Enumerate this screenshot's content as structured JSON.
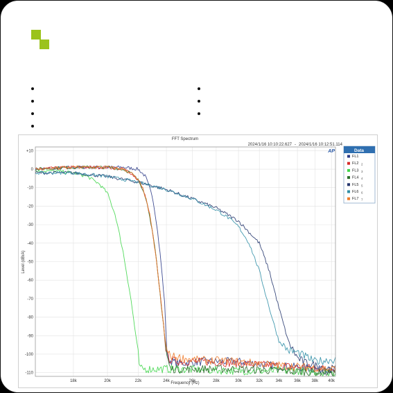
{
  "chart_data": {
    "type": "line",
    "title": "FFT Spectrum",
    "timestamp_left": "2024/1/16 10:10:22.627",
    "timestamp_sep": "-",
    "timestamp_right": "2024/1/16 10:12:51.114",
    "brand": "AP",
    "xlabel": "Frequency (Hz)",
    "ylabel": "Level (dBrA)",
    "xscale": "log",
    "xlim": [
      16000,
      40500
    ],
    "ylim": [
      -112,
      12
    ],
    "x_ticks": [
      18000,
      20000,
      22000,
      24000,
      26000,
      28000,
      30000,
      32000,
      34000,
      36000,
      38000,
      40000
    ],
    "x_tick_labels": [
      "18k",
      "20k",
      "22k",
      "24k",
      "26k",
      "28k",
      "30k",
      "32k",
      "34k",
      "36k",
      "38k",
      "40k"
    ],
    "y_ticks": [
      10,
      0,
      -10,
      -20,
      -30,
      -40,
      -50,
      -60,
      -70,
      -80,
      -90,
      -100,
      -110
    ],
    "y_tick_labels": [
      "+10",
      "0",
      "-10",
      "-20",
      "-30",
      "-40",
      "-50",
      "-60",
      "-70",
      "-80",
      "-90",
      "-100",
      "-110"
    ],
    "grid": true,
    "legend_title": "Data",
    "legend_position": "right",
    "series": [
      {
        "name": "FL1",
        "suffix": "",
        "color": "#2b3a87",
        "x": [
          16000,
          18000,
          20000,
          21000,
          22000,
          22500,
          23000,
          23300,
          23600,
          23900,
          24000,
          24100,
          24500,
          25000,
          27000,
          30000,
          33000,
          36000,
          40000
        ],
        "y": [
          0,
          1,
          1,
          1,
          0,
          -4,
          -15,
          -30,
          -50,
          -75,
          -95,
          -103,
          -104,
          -105,
          -104,
          -104,
          -106,
          -107,
          -109
        ]
      },
      {
        "name": "FL2",
        "suffix": "2",
        "color": "#d62a2a",
        "x": [
          16000,
          18000,
          20000,
          21000,
          21500,
          22000,
          22400,
          22800,
          23200,
          23500,
          23800,
          24000,
          24300,
          25000,
          27000,
          30000,
          33000,
          36000,
          40000
        ],
        "y": [
          0,
          1,
          1,
          0,
          -2,
          -6,
          -12,
          -25,
          -45,
          -65,
          -85,
          -100,
          -103,
          -104,
          -104,
          -105,
          -106,
          -107,
          -108
        ]
      },
      {
        "name": "FL3",
        "suffix": "3",
        "color": "#3fd64a",
        "x": [
          16000,
          17000,
          18000,
          18800,
          19500,
          20000,
          20500,
          21000,
          21500,
          21800,
          22000,
          22100,
          22500,
          24000,
          30000,
          36000,
          40000
        ],
        "y": [
          -1,
          -1,
          -2,
          -4,
          -8,
          -13,
          -25,
          -45,
          -70,
          -88,
          -100,
          -108,
          -108,
          -108,
          -109,
          -109,
          -110
        ]
      },
      {
        "name": "FL4",
        "suffix": "4",
        "color": "#2b6e2b",
        "x": [
          16000,
          18000,
          20000,
          21000,
          21500,
          22000,
          22400,
          22800,
          23200,
          23500,
          23800,
          24000,
          24300,
          26000,
          30000,
          34000,
          40000
        ],
        "y": [
          0,
          1,
          1,
          0,
          -2,
          -6,
          -12,
          -25,
          -45,
          -65,
          -85,
          -100,
          -108,
          -108,
          -108,
          -109,
          -110
        ]
      },
      {
        "name": "FL5",
        "suffix": "5",
        "color": "#25366e",
        "x": [
          16000,
          18000,
          20000,
          22000,
          24000,
          26000,
          28000,
          30000,
          32000,
          33000,
          34000,
          35000,
          36000,
          37000,
          40000
        ],
        "y": [
          -2,
          -2,
          -4,
          -7,
          -11,
          -16,
          -21,
          -28,
          -40,
          -55,
          -75,
          -93,
          -102,
          -105,
          -108
        ]
      },
      {
        "name": "FL6",
        "suffix": "6",
        "color": "#2f8ea6",
        "x": [
          16000,
          18000,
          20000,
          22000,
          24000,
          26000,
          28000,
          29000,
          30000,
          31000,
          32000,
          33000,
          34000,
          35000,
          36000,
          38000,
          40000
        ],
        "y": [
          -2,
          -2,
          -4,
          -7,
          -11,
          -16,
          -22,
          -26,
          -31,
          -40,
          -55,
          -75,
          -93,
          -98,
          -99,
          -104,
          -103
        ]
      },
      {
        "name": "FL7",
        "suffix": "7",
        "color": "#f07b2a",
        "x": [
          16000,
          18000,
          20000,
          21000,
          21500,
          22000,
          22400,
          22800,
          23200,
          23500,
          23800,
          24000,
          24300,
          26000,
          30000,
          34000,
          40000
        ],
        "y": [
          0,
          1,
          1,
          0,
          -2,
          -6,
          -12,
          -25,
          -45,
          -65,
          -85,
          -98,
          -101,
          -103,
          -104,
          -106,
          -108
        ]
      }
    ]
  }
}
